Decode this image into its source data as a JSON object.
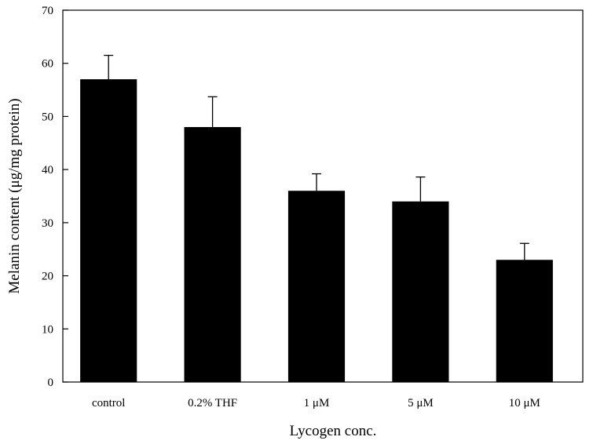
{
  "chart_data": {
    "type": "bar",
    "title": "",
    "xlabel": "Lycogen conc.",
    "ylabel": "Melanin content (μg/mg protein)",
    "categories": [
      "control",
      "0.2% THF",
      "1 μM",
      "5 μM",
      "10 μM"
    ],
    "values": [
      57,
      48,
      36,
      34,
      23
    ],
    "error_upper": [
      4.5,
      5.7,
      3.2,
      4.6,
      3.1
    ],
    "ylim": [
      0,
      70
    ],
    "yticks": [
      "0",
      "10",
      "20",
      "30",
      "40",
      "50",
      "60",
      "70"
    ],
    "grid": false,
    "bar_color": "#000000",
    "error_bar_color": "#000000"
  }
}
